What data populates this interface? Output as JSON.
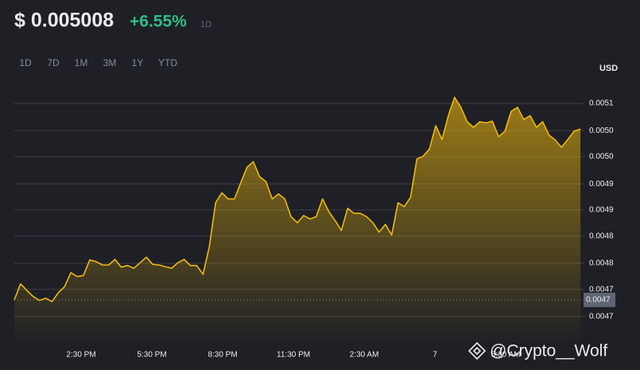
{
  "header": {
    "price": "$ 0.005008",
    "change": "+6.55%",
    "period": "1D"
  },
  "tabs": [
    "1D",
    "7D",
    "1M",
    "3M",
    "1Y",
    "YTD"
  ],
  "watermark": "@Crypto__Wolf",
  "chart_data": {
    "type": "area",
    "y_label": "USD",
    "color": "#f0b90b",
    "grid": true,
    "xlim": [
      700,
      2150
    ],
    "xticks": [
      {
        "value": 870,
        "label": "2:30 PM"
      },
      {
        "value": 1050,
        "label": "5:30 PM"
      },
      {
        "value": 1230,
        "label": "8:30 PM"
      },
      {
        "value": 1410,
        "label": "11:30 PM"
      },
      {
        "value": 1590,
        "label": "2:30 AM"
      },
      {
        "value": 1770,
        "label": "7"
      },
      {
        "value": 1950,
        "label": "5:30 AM"
      }
    ],
    "ylim": [
      0.004621,
      0.005097
    ],
    "yticks": [
      {
        "value": 0.00467,
        "label": "0.0047"
      },
      {
        "value": 0.004719,
        "label": "0.0047"
      },
      {
        "value": 0.004766,
        "label": "0.0048"
      },
      {
        "value": 0.004815,
        "label": "0.0048"
      },
      {
        "value": 0.004862,
        "label": "0.0049"
      },
      {
        "value": 0.004909,
        "label": "0.0049"
      },
      {
        "value": 0.004958,
        "label": "0.0050"
      },
      {
        "value": 0.005005,
        "label": "0.0050"
      },
      {
        "value": 0.005054,
        "label": "0.0051"
      }
    ],
    "reference_line": {
      "value": 0.0047,
      "label": "0.0047"
    },
    "x": [
      700,
      716,
      732,
      748,
      764,
      780,
      796,
      812,
      828,
      844,
      860,
      876,
      892,
      908,
      924,
      940,
      956,
      972,
      988,
      1004,
      1020,
      1036,
      1052,
      1068,
      1084,
      1100,
      1116,
      1132,
      1148,
      1164,
      1180,
      1196,
      1212,
      1228,
      1244,
      1260,
      1276,
      1292,
      1308,
      1324,
      1340,
      1356,
      1372,
      1388,
      1404,
      1420,
      1436,
      1452,
      1468,
      1484,
      1500,
      1516,
      1532,
      1548,
      1564,
      1580,
      1596,
      1612,
      1628,
      1644,
      1660,
      1676,
      1692,
      1708,
      1724,
      1740,
      1756,
      1772,
      1788,
      1804,
      1820,
      1836,
      1852,
      1868,
      1884,
      1900,
      1916,
      1932,
      1948,
      1964,
      1980,
      1996,
      2012,
      2028,
      2044,
      2060,
      2076,
      2092,
      2108,
      2124,
      2140
    ],
    "values": [
      0.0047,
      0.004729,
      0.004717,
      0.004706,
      0.004699,
      0.004703,
      0.004697,
      0.004713,
      0.004724,
      0.004749,
      0.004742,
      0.004744,
      0.004772,
      0.004769,
      0.004763,
      0.004763,
      0.004773,
      0.004759,
      0.004762,
      0.004757,
      0.004767,
      0.004777,
      0.004764,
      0.004763,
      0.00476,
      0.004757,
      0.004767,
      0.004773,
      0.004762,
      0.004762,
      0.004746,
      0.004796,
      0.004875,
      0.004893,
      0.004882,
      0.004882,
      0.004911,
      0.004939,
      0.004949,
      0.004922,
      0.004913,
      0.004882,
      0.004891,
      0.004882,
      0.00485,
      0.004839,
      0.004852,
      0.004846,
      0.00485,
      0.004882,
      0.004859,
      0.004843,
      0.004825,
      0.004865,
      0.004856,
      0.004856,
      0.00485,
      0.004839,
      0.004822,
      0.004836,
      0.004817,
      0.004875,
      0.004868,
      0.004885,
      0.004954,
      0.004959,
      0.004972,
      0.005014,
      0.004989,
      0.005032,
      0.005065,
      0.005047,
      0.005021,
      0.005011,
      0.005021,
      0.005019,
      0.005022,
      0.004994,
      0.005004,
      0.00504,
      0.005047,
      0.005025,
      0.005032,
      0.005011,
      0.005021,
      0.004997,
      0.004988,
      0.004975,
      0.004989,
      0.005004,
      0.005008
    ]
  }
}
